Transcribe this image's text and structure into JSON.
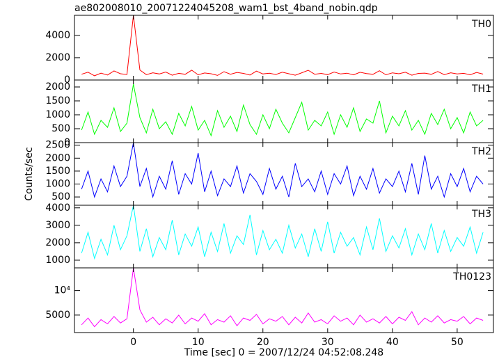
{
  "title": "ae802008010_20071224045208_wam1_bst_4band_nobin.qdp",
  "y_label": "Counts/sec",
  "x_label": "Time [sec] 0 = 2007/12/24 04:52:08.248",
  "chart_data": [
    {
      "type": "line",
      "name": "TH0",
      "color": "#ff0000",
      "ylim": [
        0,
        5800
      ],
      "yticks": [
        0,
        2000,
        4000
      ],
      "x": [
        -8,
        -7,
        -6,
        -5,
        -4,
        -3,
        -2,
        -1,
        0,
        1,
        2,
        3,
        4,
        5,
        6,
        7,
        8,
        9,
        10,
        11,
        12,
        13,
        14,
        15,
        16,
        17,
        18,
        19,
        20,
        21,
        22,
        23,
        24,
        25,
        26,
        27,
        28,
        29,
        30,
        31,
        32,
        33,
        34,
        35,
        36,
        37,
        38,
        39,
        40,
        41,
        42,
        43,
        44,
        45,
        46,
        47,
        48,
        49,
        50,
        51,
        52,
        53,
        54
      ],
      "values": [
        520,
        700,
        380,
        610,
        450,
        820,
        560,
        490,
        5800,
        900,
        480,
        650,
        540,
        720,
        430,
        600,
        510,
        880,
        470,
        630,
        560,
        410,
        750,
        520,
        680,
        590,
        450,
        800,
        540,
        610,
        490,
        700,
        560,
        430,
        650,
        870,
        520,
        590,
        480,
        720,
        540,
        610,
        460,
        690,
        580,
        510,
        830,
        470,
        640,
        560,
        700,
        430,
        590,
        620,
        510,
        760,
        480,
        650,
        540,
        600,
        470,
        680,
        530
      ]
    },
    {
      "type": "line",
      "name": "TH1",
      "color": "#00ff00",
      "ylim": [
        0,
        2250
      ],
      "yticks": [
        0,
        500,
        1000,
        1500,
        2000
      ],
      "x": [
        -8,
        -7,
        -6,
        -5,
        -4,
        -3,
        -2,
        -1,
        0,
        1,
        2,
        3,
        4,
        5,
        6,
        7,
        8,
        9,
        10,
        11,
        12,
        13,
        14,
        15,
        16,
        17,
        18,
        19,
        20,
        21,
        22,
        23,
        24,
        25,
        26,
        27,
        28,
        29,
        30,
        31,
        32,
        33,
        34,
        35,
        36,
        37,
        38,
        39,
        40,
        41,
        42,
        43,
        44,
        45,
        46,
        47,
        48,
        49,
        50,
        51,
        52,
        53,
        54
      ],
      "values": [
        450,
        1100,
        300,
        800,
        550,
        1250,
        400,
        700,
        2100,
        900,
        350,
        1200,
        500,
        750,
        300,
        1050,
        600,
        1300,
        450,
        800,
        250,
        1150,
        550,
        950,
        400,
        1350,
        650,
        300,
        1000,
        500,
        1200,
        700,
        350,
        900,
        1450,
        450,
        800,
        600,
        1100,
        300,
        1000,
        550,
        1250,
        400,
        850,
        700,
        1500,
        350,
        950,
        600,
        1150,
        450,
        800,
        300,
        1050,
        650,
        1200,
        500,
        900,
        350,
        1100,
        600,
        800
      ]
    },
    {
      "type": "line",
      "name": "TH2",
      "color": "#0000ff",
      "ylim": [
        180,
        2600
      ],
      "yticks": [
        500,
        1000,
        1500,
        2000,
        2500
      ],
      "x": [
        -8,
        -7,
        -6,
        -5,
        -4,
        -3,
        -2,
        -1,
        0,
        1,
        2,
        3,
        4,
        5,
        6,
        7,
        8,
        9,
        10,
        11,
        12,
        13,
        14,
        15,
        16,
        17,
        18,
        19,
        20,
        21,
        22,
        23,
        24,
        25,
        26,
        27,
        28,
        29,
        30,
        31,
        32,
        33,
        34,
        35,
        36,
        37,
        38,
        39,
        40,
        41,
        42,
        43,
        44,
        45,
        46,
        47,
        48,
        49,
        50,
        51,
        52,
        53,
        54
      ],
      "values": [
        800,
        1500,
        500,
        1200,
        700,
        1700,
        900,
        1300,
        2600,
        900,
        1600,
        500,
        1300,
        800,
        1900,
        600,
        1400,
        1000,
        2200,
        700,
        1500,
        550,
        1200,
        900,
        1700,
        650,
        1400,
        1100,
        600,
        1600,
        800,
        1300,
        500,
        1800,
        900,
        1200,
        700,
        1500,
        600,
        1400,
        1000,
        1700,
        550,
        1300,
        800,
        1600,
        650,
        1200,
        900,
        1500,
        700,
        1800,
        600,
        2100,
        800,
        1300,
        500,
        1400,
        900,
        1600,
        700,
        1300,
        1000
      ]
    },
    {
      "type": "line",
      "name": "TH3",
      "color": "#00ffff",
      "ylim": [
        560,
        4150
      ],
      "yticks": [
        1000,
        2000,
        3000,
        4000
      ],
      "x": [
        -8,
        -7,
        -6,
        -5,
        -4,
        -3,
        -2,
        -1,
        0,
        1,
        2,
        3,
        4,
        5,
        6,
        7,
        8,
        9,
        10,
        11,
        12,
        13,
        14,
        15,
        16,
        17,
        18,
        19,
        20,
        21,
        22,
        23,
        24,
        25,
        26,
        27,
        28,
        29,
        30,
        31,
        32,
        33,
        34,
        35,
        36,
        37,
        38,
        39,
        40,
        41,
        42,
        43,
        44,
        45,
        46,
        47,
        48,
        49,
        50,
        51,
        52,
        53,
        54
      ],
      "values": [
        1400,
        2600,
        1100,
        2200,
        1300,
        3000,
        1600,
        2400,
        4150,
        1500,
        2800,
        1200,
        2300,
        1600,
        3300,
        1300,
        2500,
        1800,
        2900,
        1200,
        2600,
        1500,
        3100,
        1400,
        2400,
        1900,
        3600,
        1300,
        2700,
        1600,
        2200,
        1400,
        3000,
        1700,
        2500,
        1200,
        2800,
        1500,
        3200,
        1400,
        2600,
        1800,
        2300,
        1300,
        2900,
        1600,
        3400,
        1500,
        2400,
        1700,
        2800,
        1300,
        2500,
        1600,
        3100,
        1400,
        2700,
        1500,
        2300,
        1800,
        2900,
        1400,
        2600
      ]
    },
    {
      "type": "line",
      "name": "TH0123",
      "color": "#ff00ff",
      "log_scale": true,
      "ylim": [
        3050,
        19000
      ],
      "yticks": [
        5000,
        {
          "value": 10000,
          "label": "10⁴"
        }
      ],
      "xlim": [
        -9.1,
        55.6
      ],
      "xticks": [
        0,
        10,
        20,
        30,
        40,
        50
      ],
      "x": [
        -8,
        -7,
        -6,
        -5,
        -4,
        -3,
        -2,
        -1,
        0,
        1,
        2,
        3,
        4,
        5,
        6,
        7,
        8,
        9,
        10,
        11,
        12,
        13,
        14,
        15,
        16,
        17,
        18,
        19,
        20,
        21,
        22,
        23,
        24,
        25,
        26,
        27,
        28,
        29,
        30,
        31,
        32,
        33,
        34,
        35,
        36,
        37,
        38,
        39,
        40,
        41,
        42,
        43,
        44,
        45,
        46,
        47,
        48,
        49,
        50,
        51,
        52,
        53,
        54
      ],
      "values": [
        3800,
        4600,
        3600,
        4400,
        3900,
        4800,
        4000,
        4500,
        19000,
        5800,
        4100,
        4700,
        3800,
        4500,
        4000,
        5000,
        3900,
        4600,
        4200,
        5200,
        3800,
        4400,
        4100,
        4900,
        3700,
        4600,
        4300,
        5100,
        3900,
        4500,
        4200,
        4800,
        3800,
        4700,
        4000,
        5300,
        4100,
        4400,
        3900,
        4900,
        4200,
        4600,
        3800,
        5000,
        4100,
        4500,
        4000,
        4800,
        3900,
        4700,
        4300,
        5500,
        3800,
        4600,
        4100,
        4900,
        4000,
        4400,
        4200,
        4800,
        3900,
        4600,
        4300
      ]
    }
  ]
}
